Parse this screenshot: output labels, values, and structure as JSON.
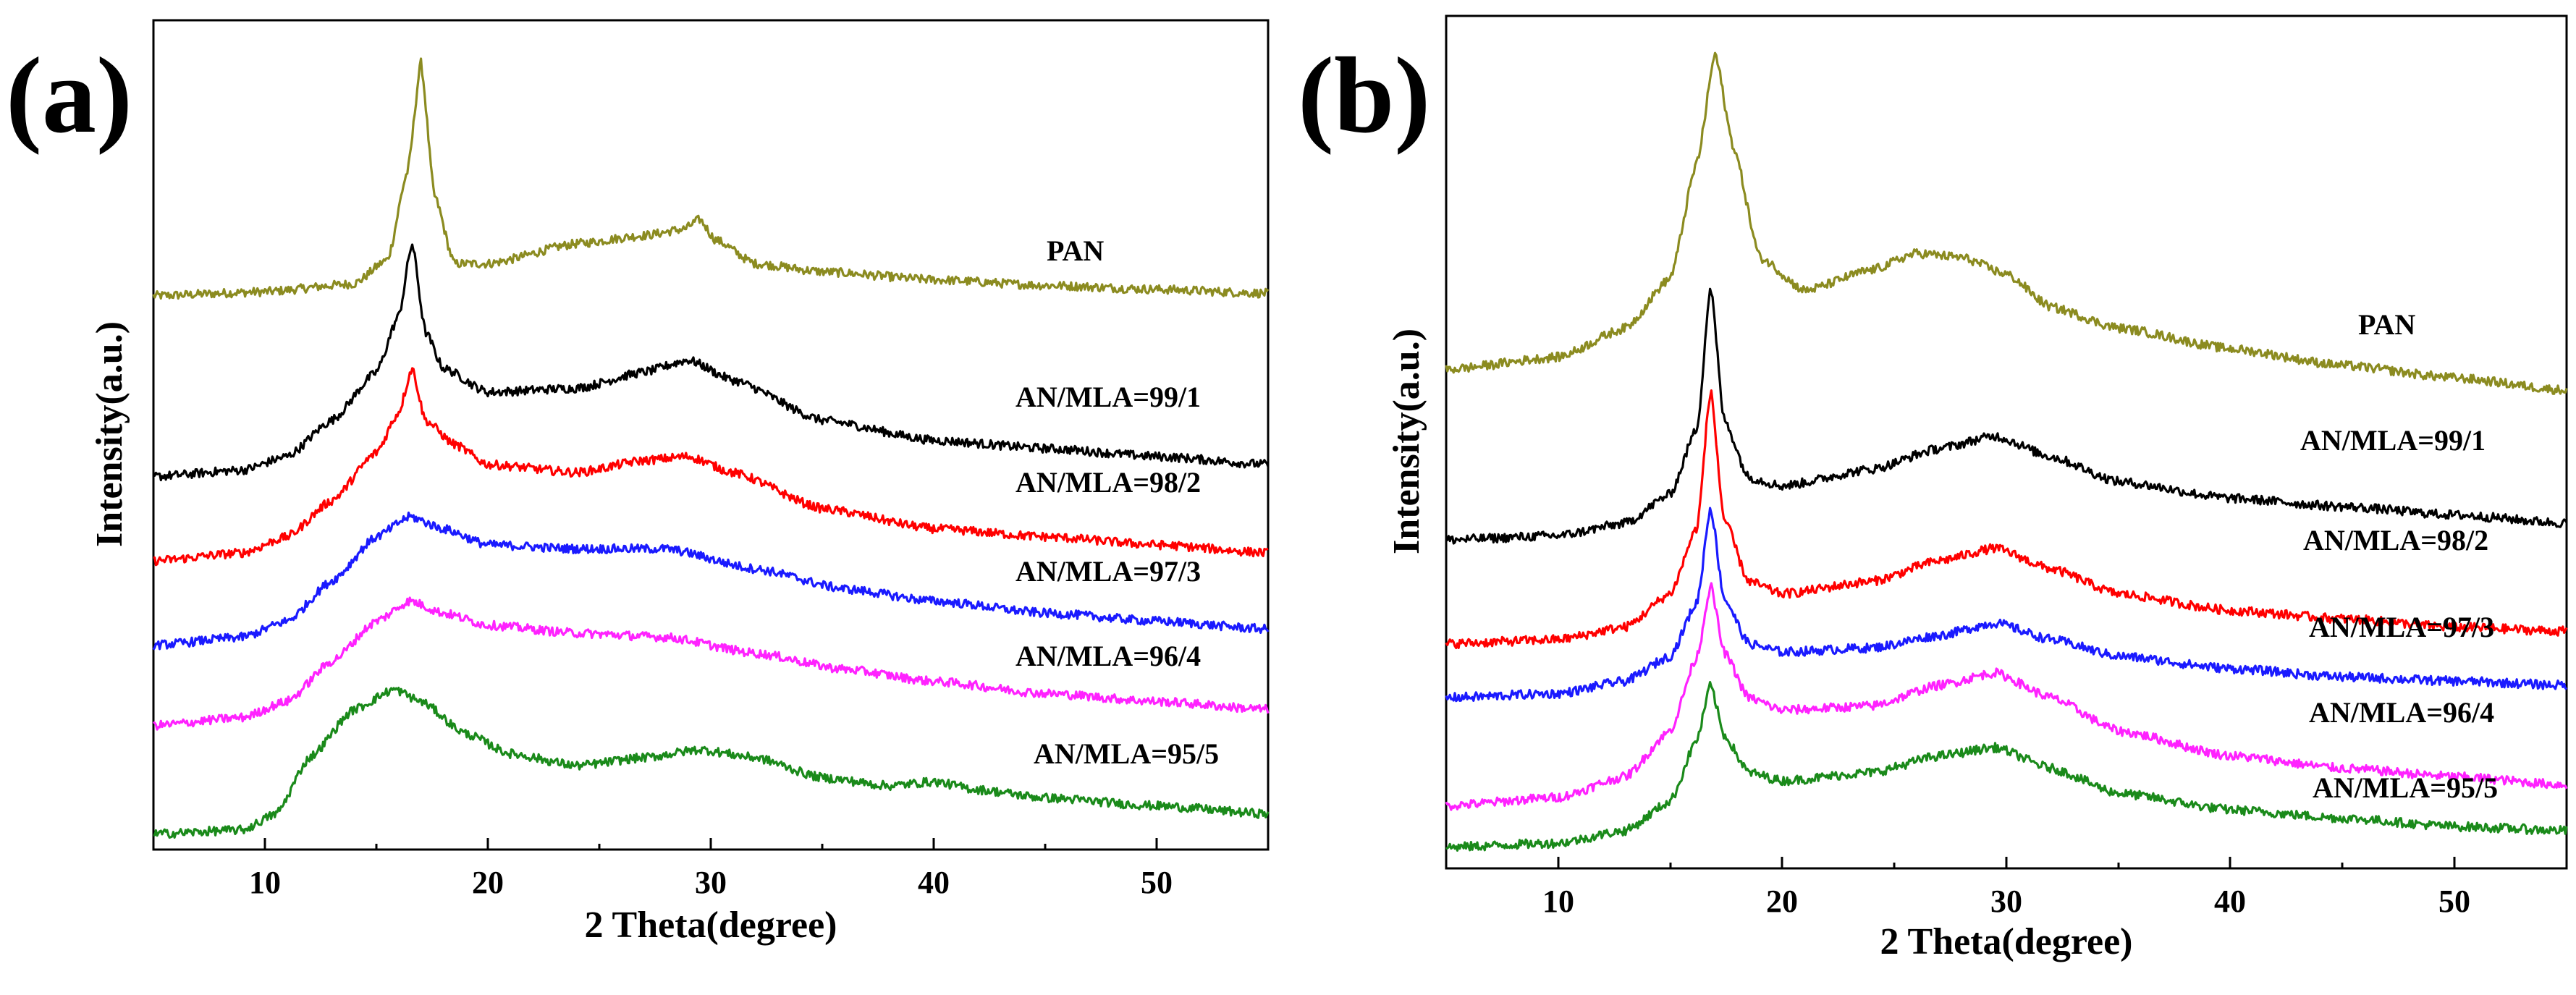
{
  "colors": {
    "PAN": "#8b8b20",
    "AN/MLA=99/1": "#000000",
    "AN/MLA=98/2": "#ff0000",
    "AN/MLA=97/3": "#1a1aff",
    "AN/MLA=96/4": "#ff22ff",
    "AN/MLA=95/5": "#1a8a1a"
  },
  "chart_data": [
    {
      "type": "line",
      "panel_label": "(a)",
      "xlabel": "2 Theta(degree)",
      "ylabel": "Intensity(a.u.)",
      "xlim": [
        5,
        55
      ],
      "ylim": [
        0,
        100
      ],
      "xticks": [
        10,
        20,
        30,
        40,
        50
      ],
      "grid": false,
      "series": [
        {
          "name": "PAN",
          "label": "PAN",
          "x": [
            5,
            10,
            14,
            15.5,
            16.4,
            17.0,
            17.6,
            18.5,
            20,
            24,
            27,
            28.8,
            29.5,
            30.2,
            32,
            35,
            40,
            45,
            50,
            55
          ],
          "y": [
            67.5,
            68.0,
            69.0,
            72.0,
            83.0,
            96.5,
            80.0,
            71.5,
            71.5,
            74.0,
            75.0,
            75.8,
            77.0,
            74.5,
            71.5,
            70.5,
            69.5,
            68.8,
            68.3,
            67.8
          ]
        },
        {
          "name": "AN/MLA=99/1",
          "label": "AN/MLA=99/1",
          "x": [
            5,
            9,
            11,
            13,
            15,
            16.0,
            16.6,
            17.2,
            18,
            20,
            24,
            27,
            29,
            31,
            35,
            40,
            45,
            50,
            55
          ],
          "y": [
            45.0,
            45.8,
            47.5,
            52.0,
            58.0,
            65.0,
            74.0,
            63.0,
            58.5,
            55.5,
            56.0,
            58.0,
            59.5,
            57.0,
            52.0,
            49.5,
            48.5,
            47.5,
            46.5
          ]
        },
        {
          "name": "AN/MLA=98/2",
          "label": "AN/MLA=98/2",
          "x": [
            5,
            9,
            11,
            13,
            15,
            16.0,
            16.6,
            17.2,
            18.5,
            20,
            24,
            27,
            29,
            31,
            35,
            40,
            45,
            50,
            55
          ],
          "y": [
            34.5,
            35.5,
            37.5,
            42.0,
            48.0,
            53.0,
            58.5,
            52.0,
            49.0,
            46.5,
            45.5,
            47.0,
            47.5,
            45.5,
            41.0,
            38.5,
            37.5,
            36.5,
            35.5
          ]
        },
        {
          "name": "AN/MLA=97/3",
          "label": "AN/MLA=97/3",
          "x": [
            5,
            9,
            11,
            13,
            15,
            16.5,
            18,
            20,
            24,
            28,
            32,
            36,
            40,
            45,
            50,
            55
          ],
          "y": [
            24.0,
            25.0,
            27.0,
            32.0,
            37.5,
            40.0,
            38.5,
            36.5,
            36.0,
            36.0,
            33.5,
            31.0,
            29.5,
            28.0,
            27.0,
            26.0
          ]
        },
        {
          "name": "AN/MLA=96/4",
          "label": "AN/MLA=96/4",
          "x": [
            5,
            9,
            11,
            13,
            15,
            16.5,
            18,
            20,
            24,
            28,
            32,
            36,
            40,
            45,
            50,
            55
          ],
          "y": [
            14.0,
            15.0,
            17.0,
            22.0,
            27.0,
            29.5,
            28.0,
            26.5,
            25.5,
            25.0,
            23.0,
            21.0,
            19.5,
            18.0,
            17.0,
            16.0
          ]
        },
        {
          "name": "AN/MLA=95/5",
          "label": "AN/MLA=95/5",
          "x": [
            5,
            9,
            10.5,
            12,
            14,
            15.8,
            17,
            19,
            21,
            24,
            27,
            29.5,
            32,
            35,
            38,
            40,
            42,
            45,
            50,
            55
          ],
          "y": [
            0.5,
            1.0,
            3.0,
            10.0,
            16.0,
            18.5,
            17.0,
            13.0,
            10.5,
            9.0,
            10.0,
            11.0,
            10.0,
            7.5,
            6.5,
            7.0,
            6.0,
            5.0,
            4.0,
            3.0
          ]
        }
      ]
    },
    {
      "type": "line",
      "panel_label": "(b)",
      "xlabel": "2 Theta(degree)",
      "ylabel": "Intensity(a.u.)",
      "xlim": [
        5,
        55
      ],
      "ylim": [
        0,
        100
      ],
      "xticks": [
        10,
        20,
        30,
        40,
        50
      ],
      "grid": false,
      "series": [
        {
          "name": "PAN",
          "label": "PAN",
          "x": [
            5,
            10,
            13,
            15,
            16.2,
            17.0,
            17.8,
            19,
            21,
            24,
            26,
            28,
            30,
            32,
            35,
            40,
            45,
            50,
            55
          ],
          "y": [
            59.0,
            60.5,
            64.0,
            70.0,
            84.0,
            97.0,
            86.0,
            72.5,
            68.5,
            71.0,
            73.0,
            72.5,
            70.5,
            66.5,
            64.0,
            61.5,
            59.5,
            58.0,
            56.5
          ]
        },
        {
          "name": "AN/MLA=99/1",
          "label": "AN/MLA=99/1",
          "x": [
            5,
            10,
            13,
            15,
            16.2,
            16.8,
            17.4,
            18.5,
            20,
            24,
            27,
            29.5,
            32,
            35,
            40,
            45,
            50,
            55
          ],
          "y": [
            38.5,
            39.0,
            40.5,
            44.0,
            52.0,
            69.0,
            53.0,
            46.0,
            45.0,
            47.0,
            49.5,
            51.0,
            48.5,
            45.5,
            43.5,
            42.5,
            41.5,
            40.5
          ]
        },
        {
          "name": "AN/MLA=98/2",
          "label": "AN/MLA=98/2",
          "x": [
            5,
            10,
            13,
            15,
            16.2,
            16.8,
            17.4,
            18.5,
            20,
            24,
            27,
            29.5,
            32,
            35,
            40,
            45,
            50,
            55
          ],
          "y": [
            26.0,
            26.5,
            28.0,
            32.0,
            40.0,
            56.5,
            41.0,
            33.5,
            32.0,
            33.5,
            36.0,
            37.5,
            35.0,
            32.0,
            30.0,
            29.0,
            28.0,
            27.5
          ]
        },
        {
          "name": "AN/MLA=97/3",
          "label": "AN/MLA=97/3",
          "x": [
            5,
            10,
            13,
            15,
            16.2,
            16.8,
            17.4,
            18.5,
            20,
            24,
            27,
            29.5,
            32,
            35,
            40,
            45,
            50,
            55
          ],
          "y": [
            19.5,
            20.0,
            21.5,
            24.5,
            31.0,
            42.5,
            31.5,
            26.0,
            25.0,
            25.5,
            27.0,
            28.5,
            26.5,
            24.5,
            23.0,
            22.0,
            21.5,
            21.0
          ]
        },
        {
          "name": "AN/MLA=96/4",
          "label": "AN/MLA=96/4",
          "x": [
            5,
            10,
            13,
            15,
            16.2,
            16.8,
            17.4,
            18.5,
            20,
            24,
            27,
            29.5,
            32,
            35,
            40,
            45,
            50,
            55
          ],
          "y": [
            6.5,
            7.5,
            10.0,
            15.5,
            24.5,
            33.0,
            25.0,
            19.5,
            18.0,
            18.5,
            21.0,
            22.5,
            19.5,
            15.5,
            12.5,
            11.0,
            10.0,
            9.0
          ]
        },
        {
          "name": "AN/MLA=95/5",
          "label": "AN/MLA=95/5",
          "x": [
            5,
            10,
            13,
            15,
            16.2,
            16.8,
            17.4,
            18.5,
            20,
            24,
            27,
            29.5,
            32,
            35,
            40,
            45,
            50,
            55
          ],
          "y": [
            1.5,
            2.0,
            3.5,
            7.0,
            14.5,
            21.0,
            15.0,
            10.5,
            9.5,
            10.5,
            12.5,
            13.5,
            11.0,
            8.0,
            6.0,
            5.0,
            4.0,
            3.5
          ]
        }
      ]
    }
  ]
}
